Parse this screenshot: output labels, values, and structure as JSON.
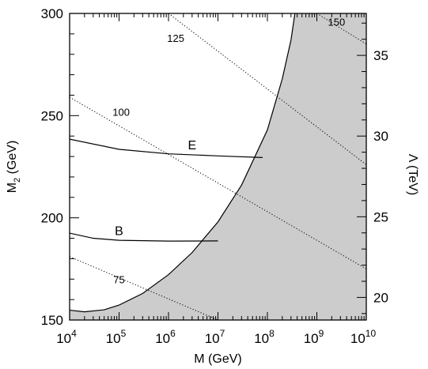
{
  "chart_data": {
    "type": "line",
    "title": "",
    "xlabel": "M (GeV)",
    "ylabel": "M",
    "ylabel_subscript": "2",
    "ylabel_unit": " (GeV)",
    "y2label": "Λ (TeV)",
    "x_scale": "log",
    "xlim": [
      10000,
      10000000000
    ],
    "x_ticks": [
      {
        "base": "10",
        "exp": "4",
        "value": 10000
      },
      {
        "base": "10",
        "exp": "5",
        "value": 100000
      },
      {
        "base": "10",
        "exp": "6",
        "value": 1000000
      },
      {
        "base": "10",
        "exp": "7",
        "value": 10000000
      },
      {
        "base": "10",
        "exp": "8",
        "value": 100000000
      },
      {
        "base": "10",
        "exp": "9",
        "value": 1000000000
      },
      {
        "base": "10",
        "exp": "10",
        "value": 10000000000
      }
    ],
    "ylim": [
      150,
      300
    ],
    "y_ticks": [
      "150",
      "200",
      "250",
      "300"
    ],
    "y2_range": [
      18.6,
      37.6
    ],
    "y2_ticks": [
      "20",
      "25",
      "30",
      "35"
    ],
    "shaded_region": {
      "description": "excluded",
      "color": "#cccccc",
      "boundary": [
        [
          10000,
          154.8
        ],
        [
          20000,
          154.0
        ],
        [
          50000,
          155.0
        ],
        [
          100000,
          157.3
        ],
        [
          300000,
          163.0
        ],
        [
          1000000,
          172.2
        ],
        [
          3000000,
          183.0
        ],
        [
          10000000,
          198.0
        ],
        [
          30000000,
          216.0
        ],
        [
          100000000,
          243.0
        ],
        [
          200000000,
          268.0
        ],
        [
          300000000,
          287.0
        ],
        [
          360000000,
          300.0
        ]
      ]
    },
    "series": [
      {
        "label": "E",
        "style": "solid",
        "points": [
          [
            10000,
            238.5
          ],
          [
            100000,
            233.5
          ],
          [
            1000000,
            231.3
          ],
          [
            10000000,
            230.3
          ],
          [
            80000000,
            229.5
          ]
        ]
      },
      {
        "label": "B",
        "style": "solid",
        "points": [
          [
            10000,
            192.5
          ],
          [
            30000,
            190.0
          ],
          [
            100000,
            189.0
          ],
          [
            1000000,
            188.6
          ],
          [
            10000000,
            188.7
          ]
        ]
      }
    ],
    "contours": [
      {
        "label": "75",
        "style": "dotted",
        "points": [
          [
            10000,
            181.0
          ],
          [
            10000000,
            150.0
          ]
        ]
      },
      {
        "label": "100",
        "style": "dotted",
        "points": [
          [
            10000,
            259.0
          ],
          [
            10000000000,
            175.0
          ]
        ]
      },
      {
        "label": "125",
        "style": "dotted",
        "points": [
          [
            1000000,
            300.0
          ],
          [
            10000000000,
            226.0
          ]
        ]
      },
      {
        "label": "150",
        "style": "dotted",
        "points": [
          [
            1000000000,
            300.0
          ],
          [
            10000000000,
            285.0
          ]
        ]
      }
    ],
    "annotations": [
      {
        "text": "E",
        "x": 3000000,
        "y": 233.5
      },
      {
        "text": "B",
        "x": 100000,
        "y": 191.5
      },
      {
        "text": "75",
        "x": 100000,
        "y": 168.0
      },
      {
        "text": "100",
        "x": 110000,
        "y": 250.0
      },
      {
        "text": "125",
        "x": 1400000,
        "y": 286.0
      },
      {
        "text": "150",
        "x": 2500000000,
        "y": 294.0
      }
    ],
    "grid": false,
    "legend": "none"
  }
}
